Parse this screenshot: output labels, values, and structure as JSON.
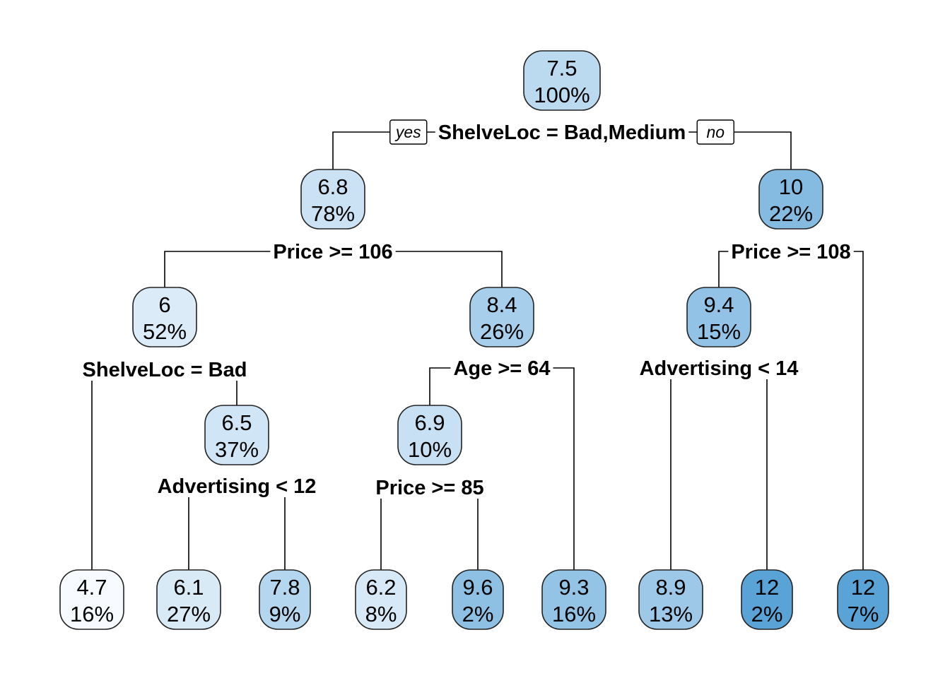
{
  "branch_labels": {
    "yes": "yes",
    "no": "no"
  },
  "colors": {
    "light": "#f7fbff",
    "dark": "#5aa3d6",
    "stroke": "#222222"
  },
  "value_range": [
    4.7,
    12
  ],
  "nodes": [
    {
      "id": "n1",
      "value": "7.5",
      "percent": "100%",
      "split": "ShelveLoc = Bad,Medium"
    },
    {
      "id": "n2",
      "value": "6.8",
      "percent": "78%",
      "split": "Price >= 106"
    },
    {
      "id": "n3",
      "value": "10",
      "percent": "22%",
      "split": "Price >= 108"
    },
    {
      "id": "n4",
      "value": "6",
      "percent": "52%",
      "split": "ShelveLoc = Bad"
    },
    {
      "id": "n5",
      "value": "8.4",
      "percent": "26%",
      "split": "Age >= 64"
    },
    {
      "id": "n6",
      "value": "9.4",
      "percent": "15%",
      "split": "Advertising < 14"
    },
    {
      "id": "n7",
      "value": "6.5",
      "percent": "37%",
      "split": "Advertising < 12"
    },
    {
      "id": "n8",
      "value": "6.9",
      "percent": "10%",
      "split": "Price >= 85"
    },
    {
      "id": "l1",
      "value": "4.7",
      "percent": "16%"
    },
    {
      "id": "l2",
      "value": "6.1",
      "percent": "27%"
    },
    {
      "id": "l3",
      "value": "7.8",
      "percent": "9%"
    },
    {
      "id": "l4",
      "value": "6.2",
      "percent": "8%"
    },
    {
      "id": "l5",
      "value": "9.6",
      "percent": "2%"
    },
    {
      "id": "l6",
      "value": "9.3",
      "percent": "16%"
    },
    {
      "id": "l7",
      "value": "8.9",
      "percent": "13%"
    },
    {
      "id": "l8",
      "value": "12",
      "percent": "2%"
    },
    {
      "id": "l9",
      "value": "12",
      "percent": "7%"
    }
  ]
}
